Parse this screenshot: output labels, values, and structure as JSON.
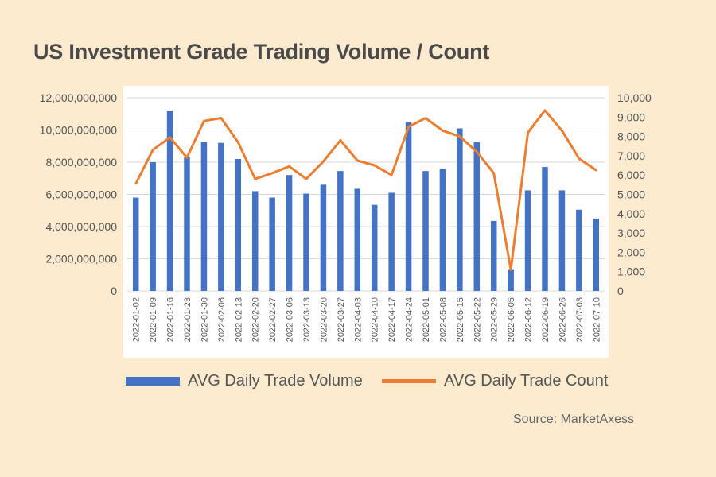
{
  "title": "US Investment Grade Trading Volume / Count",
  "source": "Source: MarketAxess",
  "colors": {
    "bar": "#4472c4",
    "line": "#ed7d31",
    "background": "#fdebd0",
    "panel": "#ffffff",
    "grid": "#d9d9d9"
  },
  "chart_data": {
    "type": "bar",
    "categories": [
      "2022-01-02",
      "2022-01-09",
      "2022-01-16",
      "2022-01-23",
      "2022-01-30",
      "2022-02-06",
      "2022-02-13",
      "2022-02-20",
      "2022-02-27",
      "2022-03-06",
      "2022-03-13",
      "2022-03-20",
      "2022-03-27",
      "2022-04-03",
      "2022-04-10",
      "2022-04-17",
      "2022-04-24",
      "2022-05-01",
      "2022-05-08",
      "2022-05-15",
      "2022-05-22",
      "2022-05-29",
      "2022-06-05",
      "2022-06-12",
      "2022-06-19",
      "2022-06-26",
      "2022-07-03",
      "2022-07-10"
    ],
    "series": [
      {
        "name": "AVG Daily Trade Volume",
        "type": "bar",
        "axis": "left",
        "values": [
          5800000000,
          8000000000,
          11200000000,
          8300000000,
          9250000000,
          9200000000,
          8200000000,
          6200000000,
          5800000000,
          7200000000,
          6050000000,
          6600000000,
          7450000000,
          6350000000,
          5350000000,
          6100000000,
          10500000000,
          7450000000,
          7600000000,
          10100000000,
          9250000000,
          4350000000,
          1350000000,
          6250000000,
          7700000000,
          6250000000,
          5050000000,
          4500000000
        ]
      },
      {
        "name": "AVG Daily Trade Count",
        "type": "line",
        "axis": "right",
        "values": [
          5550,
          7300,
          7950,
          6900,
          8800,
          8950,
          7700,
          5800,
          6100,
          6450,
          5800,
          6700,
          7800,
          6750,
          6500,
          6000,
          8500,
          8950,
          8300,
          8000,
          7200,
          6100,
          1100,
          8200,
          9350,
          8300,
          6850,
          6250
        ]
      }
    ],
    "y_left": {
      "min": 0,
      "max": 12000000000,
      "ticks": [
        "0",
        "2,000,000,000",
        "4,000,000,000",
        "6,000,000,000",
        "8,000,000,000",
        "10,000,000,000",
        "12,000,000,000"
      ]
    },
    "y_right": {
      "min": 0,
      "max": 10000,
      "ticks": [
        "0",
        "1,000",
        "2,000",
        "3,000",
        "4,000",
        "5,000",
        "6,000",
        "7,000",
        "8,000",
        "9,000",
        "10,000"
      ]
    },
    "grid": true,
    "legend_position": "bottom"
  }
}
